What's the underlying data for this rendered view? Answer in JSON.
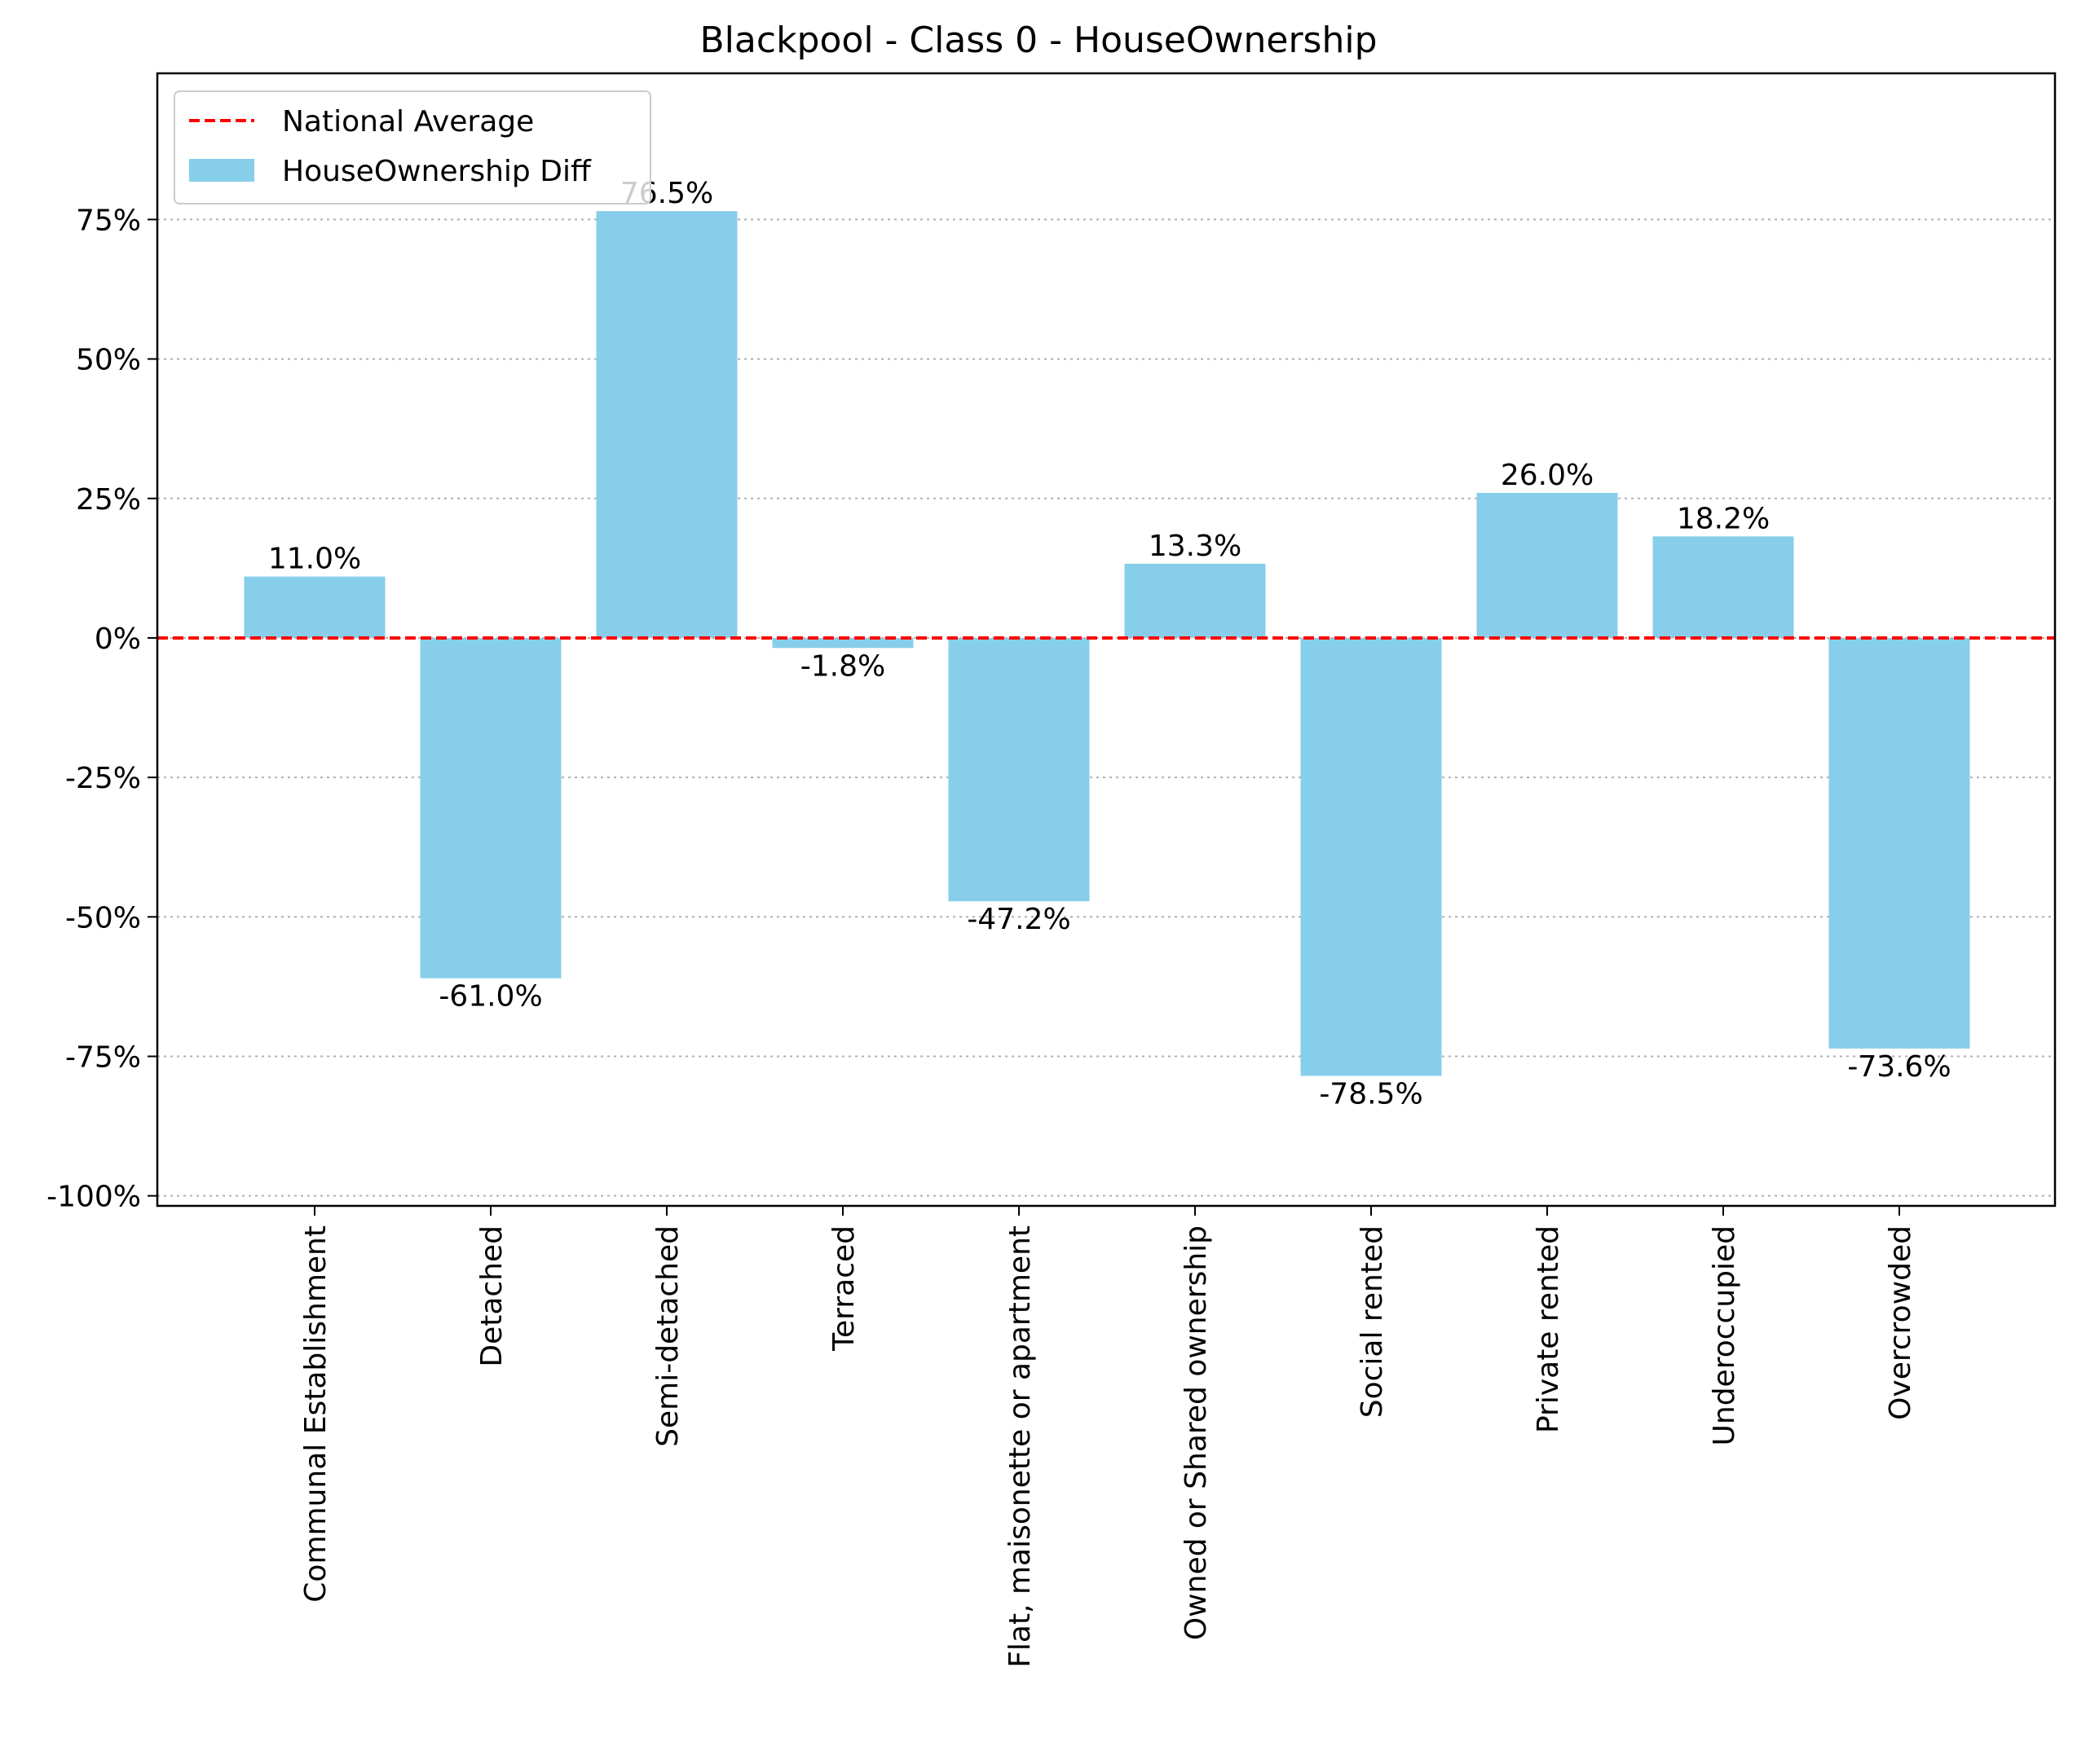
{
  "chart_data": {
    "type": "bar",
    "title": "Blackpool - Class 0 - HouseOwnership",
    "xlabel": "",
    "ylabel": "",
    "categories": [
      "Communal Establishment",
      "Detached",
      "Semi-detached",
      "Terraced",
      "Flat, maisonette or apartment",
      "Owned or Shared ownership",
      "Social rented",
      "Private rented",
      "Underoccupied",
      "Overcrowded"
    ],
    "series": [
      {
        "name": "HouseOwnership Diff",
        "values": [
          11.0,
          -61.0,
          76.5,
          -1.8,
          -47.2,
          13.3,
          -78.5,
          26.0,
          18.2,
          -73.6
        ],
        "labels": [
          "11.0%",
          "-61.0%",
          "76.5%",
          "-1.8%",
          "-47.2%",
          "13.3%",
          "-78.5%",
          "26.0%",
          "18.2%",
          "-73.6%"
        ],
        "color": "#87ceeb"
      }
    ],
    "reference_line": {
      "name": "National Average",
      "value": 0,
      "color": "#ff0000",
      "style": "dashed"
    },
    "yticks": [
      75,
      50,
      25,
      0,
      -25,
      -50,
      -75,
      -100
    ],
    "ytick_labels": [
      "75%",
      "50%",
      "25%",
      "0%",
      "-25%",
      "-50%",
      "-75%",
      "-100%"
    ],
    "ylim": [
      -101.8,
      101.2
    ],
    "grid": "horizontal dotted",
    "legend_position": "top-left"
  }
}
